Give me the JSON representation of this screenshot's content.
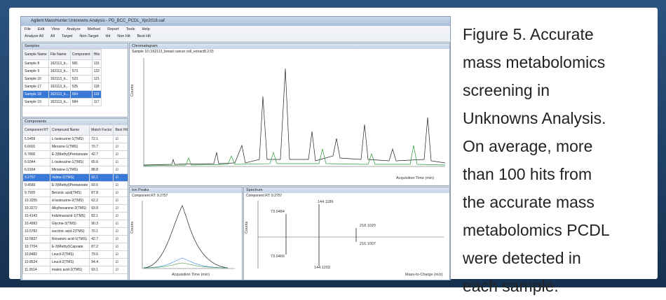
{
  "window": {
    "title": "Agilent MassHunter Unknowns Analysis - PD_BCC_PCDL_Xpr2018.uaf",
    "menu": [
      "File",
      "Edit",
      "View",
      "Analyze",
      "Method",
      "Report",
      "Tools",
      "Help"
    ],
    "toolbar": [
      "Analyze All",
      "All",
      "Target",
      "Non-Target",
      "Hit",
      "Non Hit",
      "Best Hit"
    ]
  },
  "samples": {
    "title": "Samples",
    "columns": [
      "Sample Name",
      "File Name",
      "Component",
      "Hits"
    ],
    "rows": [
      [
        "Sample 8",
        "162113_b...",
        "581",
        "115"
      ],
      [
        "Sample 9",
        "162113_b...",
        "573",
        "122"
      ],
      [
        "Sample 10",
        "162113_b...",
        "523",
        "121"
      ],
      [
        "Sample 17",
        "162113_b...",
        "525",
        "118"
      ],
      [
        "Sample 18",
        "162113_b...",
        "564",
        "118"
      ],
      [
        "Sample 19",
        "162113_b...",
        "584",
        "117"
      ]
    ]
  },
  "components": {
    "title": "Components",
    "columns": [
      "Component RT",
      "Compound Name",
      "Match Factor",
      "Best Hit"
    ],
    "rows": [
      [
        "5.5459",
        "L-Isoleucine-1(TMS)",
        "72.1"
      ],
      [
        "6.6601",
        "Mirosine-1(TMS)",
        "70.7"
      ],
      [
        "6.7805",
        "E-3(Methyl)Pentanoate",
        "42.7"
      ],
      [
        "6.9344",
        "L-Isoleucine-1(TMS)",
        "65.6"
      ],
      [
        "6.9164",
        "Mirosine-1(TMS)",
        "88.8"
      ],
      [
        "9.2757",
        "Valine-2(TMS)",
        "92.1"
      ],
      [
        "9.4569",
        "E-3(Methyl)Pentanoate",
        "60.6"
      ],
      [
        "9.7925",
        "Benzoic acid(TMS)",
        "87.8"
      ],
      [
        "10.3255",
        "d-Isoleucine-2(TMS)",
        "62.2"
      ],
      [
        "10.3272",
        "Alkylhexanine-2(TMS)",
        "93.8"
      ],
      [
        "10.4143",
        "Indolmacacid-1(TMS)",
        "82.1"
      ],
      [
        "10.4993",
        "Glycine-3(TMS)",
        "90.3"
      ],
      [
        "10.5782",
        "succinic acid-2(TMS)",
        "70.1"
      ],
      [
        "10.5827",
        "Nonanoic acid-1(TMS)",
        "42.7"
      ],
      [
        "10.7704",
        "E-3(Methyl)Capoate",
        "87.2"
      ],
      [
        "10.8482",
        "Leucil-2(TMS)",
        "79.6"
      ],
      [
        "10.8524",
        "Leucil-2(TMS)",
        "94.4"
      ],
      [
        "11.0514",
        "maleic acid-2(TMS)",
        "93.1"
      ]
    ]
  },
  "chromatogram": {
    "title": "Chromatogram",
    "subtitle": "Sample 10 (162113_breast cancer cell_extract8.2.D)",
    "x_label": "Acquisition Time (min)",
    "y_label": "Counts"
  },
  "ion_peaks": {
    "title": "Ion Peaks",
    "subtitle": "Component RT: 9.2757",
    "x_label": "Acquisition Time (min)",
    "y_label": "Counts"
  },
  "spectrum": {
    "title": "Spectrum",
    "subtitle": "Component RT: 9.2757",
    "peak_labels": [
      "73.0484",
      "144.1186",
      "218.1020",
      "216.1007",
      "73.0466",
      "144.1203"
    ],
    "x_label": "Mass-to-Charge (m/z)",
    "y_label": "Counts"
  },
  "caption": {
    "lines": [
      "Figure 5. Accurate",
      "mass metabolomics",
      "screening in",
      "Unknowns Analysis.",
      "On average, more",
      "than 100 hits from",
      "the accurate mass",
      "metabolomics PCDL",
      "were detected in",
      "each sample."
    ]
  }
}
